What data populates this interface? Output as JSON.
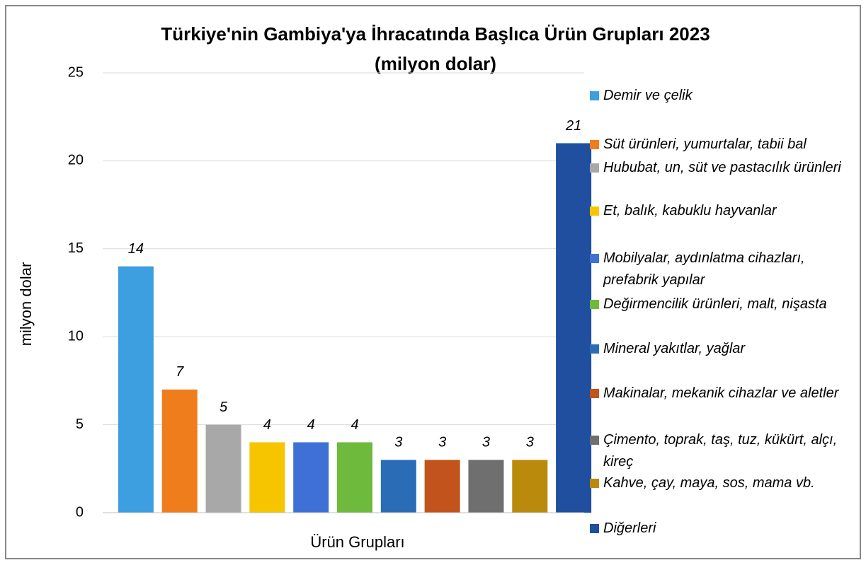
{
  "chart_data": {
    "type": "bar",
    "title": "Türkiye'nin Gambiya'ya İhracatında Başlıca Ürün Grupları 2023",
    "subtitle": "(milyon dolar)",
    "x_label": "Ürün Grupları",
    "y_label": "milyon dolar",
    "ylim": [
      0,
      25
    ],
    "yticks": [
      0,
      5,
      10,
      15,
      20,
      25
    ],
    "grid": true,
    "legend": "right",
    "series": [
      {
        "name": "Demir ve çelik",
        "color": "#3d9ee0",
        "values": [
          14
        ]
      },
      {
        "name": "Süt ürünleri, yumurtalar, tabii bal",
        "color": "#f07d1c",
        "values": [
          7
        ]
      },
      {
        "name": "Hububat, un, süt ve pastacılık ürünleri",
        "color": "#a8a8a8",
        "values": [
          5
        ]
      },
      {
        "name": "Et, balık, kabuklu hayvanlar",
        "color": "#f6c500",
        "values": [
          4
        ]
      },
      {
        "name": "Mobilyalar, aydınlatma cihazları, prefabrik yapılar",
        "color": "#3f70d6",
        "values": [
          4
        ]
      },
      {
        "name": "Değirmencilik ürünleri, malt, nişasta",
        "color": "#6dba3c",
        "values": [
          4
        ]
      },
      {
        "name": "Mineral yakıtlar, yağlar",
        "color": "#2a6db6",
        "values": [
          3
        ]
      },
      {
        "name": "Makinalar, mekanik cihazlar ve aletler",
        "color": "#c2531c",
        "values": [
          3
        ]
      },
      {
        "name": "Çimento, toprak, taş, tuz, kükürt, alçı, kireç",
        "color": "#6f6f6f",
        "values": [
          3
        ]
      },
      {
        "name": "Kahve, çay, maya, sos, mama vb.",
        "color": "#b98a0c",
        "values": [
          3
        ]
      },
      {
        "name": "Diğerleri",
        "color": "#1f4f9e",
        "values": [
          21
        ]
      }
    ]
  }
}
